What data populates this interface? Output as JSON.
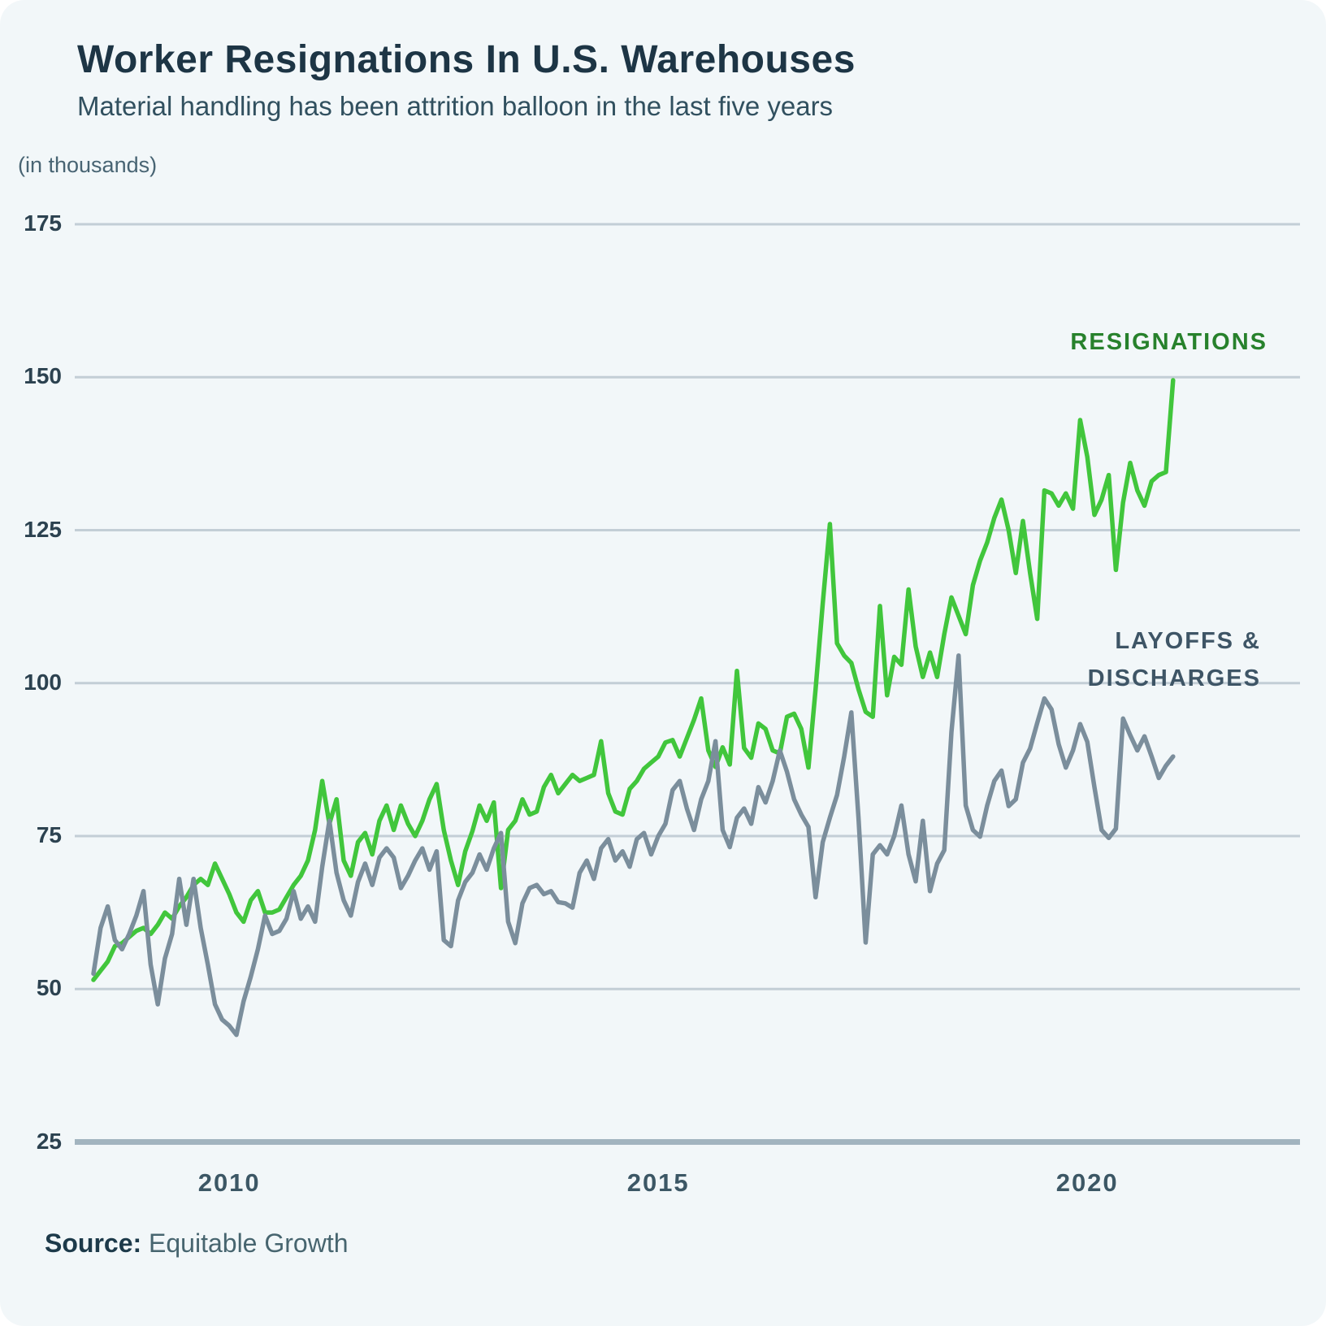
{
  "header": {
    "title": "Worker Resignations In U.S. Warehouses",
    "subtitle": "Material handling has been attrition balloon in the last five years",
    "unit_label": "(in thousands)"
  },
  "source": {
    "label": "Source:",
    "value": "Equitable Growth"
  },
  "colors": {
    "background": "#f2f7f9",
    "gridline": "#c3ced6",
    "baseline": "#a2b4bf",
    "resignations_line": "#41c63c",
    "resignations_label": "#27812c",
    "layoffs_line": "#7b8e9c",
    "layoffs_label": "#3e5566"
  },
  "chart_data": {
    "type": "line",
    "title": "Worker Resignations In U.S. Warehouses",
    "unit": "thousands",
    "frequency": "monthly",
    "x_start": "2008-06",
    "x_end": "2021-01",
    "ylim": [
      25,
      175
    ],
    "y_ticks": [
      175,
      150,
      125,
      100,
      75,
      50,
      25
    ],
    "x_ticks": [
      2010,
      2015,
      2020
    ],
    "grid": "horizontal",
    "legend_position": "inline-right",
    "series": [
      {
        "name": "RESIGNATIONS",
        "label_lines": "RESIGNATIONS",
        "color": "#41c63c",
        "values": [
          51.5,
          53,
          54.5,
          57,
          57.5,
          58.5,
          59.5,
          60,
          59,
          60.5,
          62.5,
          61.5,
          63.5,
          65,
          67,
          68,
          67,
          70.5,
          68,
          65.5,
          62.5,
          61,
          64.5,
          66,
          62.5,
          62.5,
          63,
          65,
          67,
          68.5,
          71,
          76,
          84,
          77,
          81,
          71,
          68.5,
          74,
          75.5,
          72,
          77.5,
          80,
          76,
          80,
          77,
          75,
          77.5,
          81,
          83.5,
          76,
          71,
          67,
          72.5,
          75.8,
          80,
          77.5,
          80.5,
          66.5,
          76,
          77.5,
          81,
          78.5,
          79,
          83,
          85,
          82,
          83.5,
          85,
          84,
          84.5,
          85,
          90.5,
          82,
          79,
          78.5,
          82.7,
          84,
          86,
          87,
          88,
          90.3,
          90.7,
          88,
          91,
          94,
          97.5,
          89,
          86.3,
          89.5,
          86.7,
          102,
          89.4,
          87.8,
          93.4,
          92.5,
          89,
          88.5,
          94.5,
          95,
          92.5,
          86.2,
          99,
          113,
          126,
          106.5,
          104.5,
          103.3,
          99,
          95.3,
          94.5,
          112.6,
          98,
          104.3,
          103,
          115.3,
          106,
          101,
          105,
          101,
          108,
          114,
          111,
          108,
          116,
          120,
          123,
          127,
          130,
          125,
          118,
          126.5,
          118,
          110.5,
          131.5,
          131,
          129,
          131,
          128.5,
          143,
          137,
          127.5,
          130,
          134,
          118.5,
          129.5,
          136,
          131.5,
          129,
          133,
          134,
          134.5,
          149.5
        ]
      },
      {
        "name": "LAYOFFS & DISCHARGES",
        "label_lines": "LAYOFFS &\nDISCHARGES",
        "color": "#7b8e9c",
        "values": [
          52.5,
          60,
          63.5,
          58,
          56.5,
          59,
          62,
          66,
          54,
          47.5,
          55,
          59,
          68,
          60.5,
          68,
          60,
          54,
          47.5,
          45,
          44,
          42.5,
          48,
          52,
          56.5,
          62,
          59,
          59.5,
          61.5,
          66,
          61.5,
          63.5,
          61,
          70,
          77.5,
          69,
          64.5,
          62,
          67.5,
          70.5,
          67,
          71.5,
          73,
          71.5,
          66.5,
          68.5,
          71,
          73,
          69.5,
          72.5,
          58,
          57,
          64.5,
          67.5,
          69,
          72,
          69.5,
          73,
          75.5,
          61,
          57.5,
          64,
          66.5,
          67,
          65.5,
          66,
          64.2,
          64,
          63.3,
          69,
          71,
          68,
          73,
          74.5,
          71,
          72.5,
          70,
          74.5,
          75.5,
          72,
          75,
          77,
          82.5,
          84,
          79.5,
          76,
          81,
          84,
          90.5,
          76,
          73.2,
          78,
          79.5,
          77,
          83,
          80.5,
          84,
          89,
          85.5,
          81,
          78.5,
          76.5,
          65,
          74,
          78,
          81.7,
          88,
          95.2,
          78,
          57.6,
          72,
          73.5,
          72,
          75,
          80,
          72,
          67.6,
          77.5,
          66,
          70.5,
          72.7,
          92,
          104.5,
          80,
          76,
          74.9,
          80,
          84,
          85.7,
          79.9,
          81,
          87,
          89.3,
          93.5,
          97.5,
          95.7,
          90,
          86.2,
          89,
          93.3,
          90.4,
          83,
          76,
          74.7,
          76.2,
          94.2,
          91.5,
          89,
          91.3,
          88,
          84.5,
          86.5,
          88
        ]
      }
    ]
  }
}
